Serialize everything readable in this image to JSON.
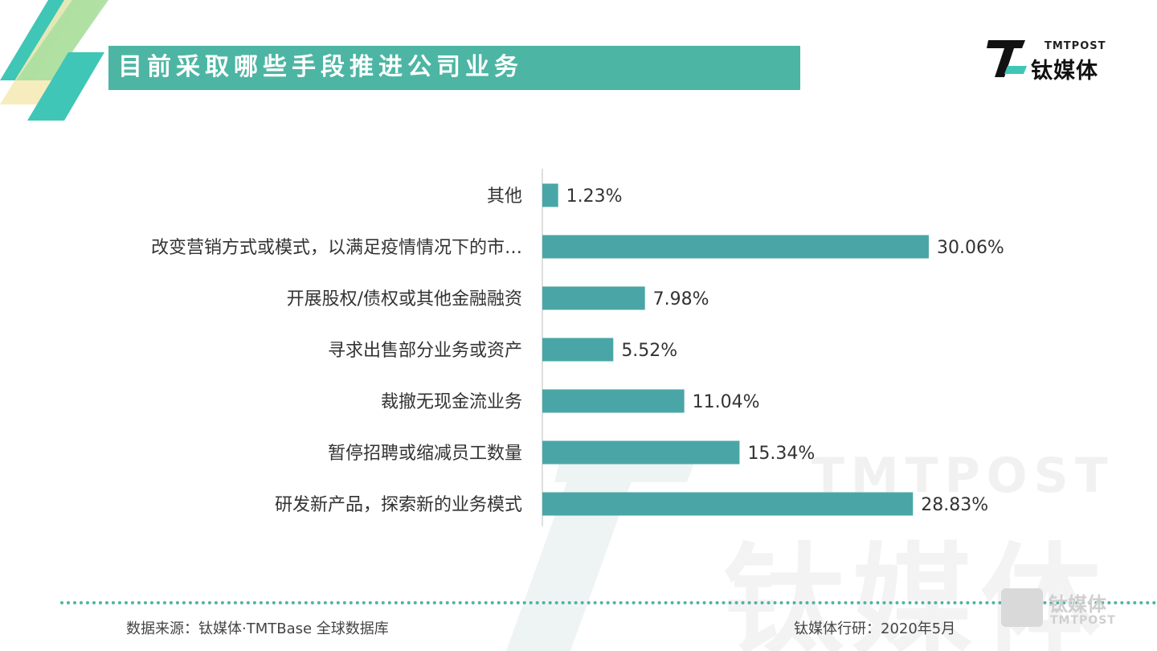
{
  "header": {
    "title": "目前采取哪些手段推进公司业务",
    "logo_en": "TMTPOST",
    "logo_cn": "钛媒体"
  },
  "chart_data": {
    "type": "bar",
    "orientation": "horizontal",
    "categories": [
      "其他",
      "改变营销方式或模式，以满足疫情情况下的市…",
      "开展股权/债权或其他金融融资",
      "寻求出售部分业务或资产",
      "裁撤无现金流业务",
      "暂停招聘或缩减员工数量",
      "研发新产品，探索新的业务模式"
    ],
    "values": [
      1.23,
      30.06,
      7.98,
      5.52,
      11.04,
      15.34,
      28.83
    ],
    "value_labels": [
      "1.23%",
      "30.06%",
      "7.98%",
      "5.52%",
      "11.04%",
      "15.34%",
      "28.83%"
    ],
    "bar_color": "#4aa6a6",
    "grid": false,
    "legend": "none"
  },
  "footer": {
    "source": "数据来源：钛媒体·TMTBase 全球数据库",
    "research": "钛媒体行研：2020年5月"
  },
  "watermark": {
    "en": "TMTPOST",
    "cn": "钛媒体"
  },
  "colors": {
    "accent": "#4db5a3",
    "deco_light_green": "#a8dfa0",
    "deco_yellow": "#f6eab6",
    "deco_teal": "#3fc6b6"
  }
}
